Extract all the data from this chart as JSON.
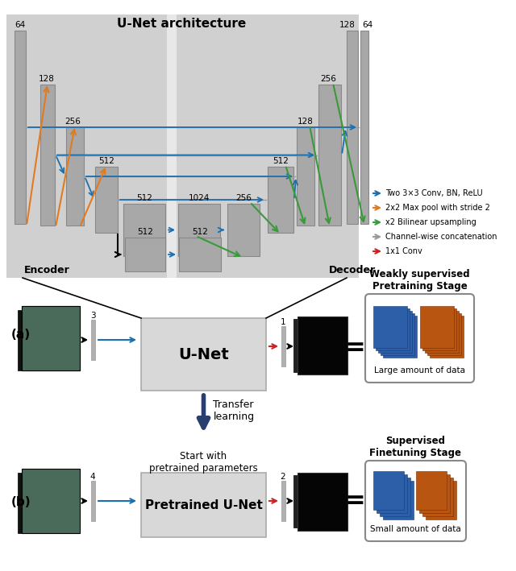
{
  "title": "U-Net architecture",
  "legend_items": [
    {
      "color": "#1a6faf",
      "label": "Two 3×3 Conv, BN, ReLU"
    },
    {
      "color": "#e07b20",
      "label": "2x2 Max pool with stride 2"
    },
    {
      "color": "#3a9a3a",
      "label": "x2 Bilinear upsampling"
    },
    {
      "color": "#999999",
      "label": "Channel-wise concatenation"
    },
    {
      "color": "#cc2222",
      "label": "1x1 Conv"
    }
  ],
  "encoder_label": "Encoder",
  "decoder_label": "Decoder",
  "panel_a_label": "(a)",
  "panel_b_label": "(b)",
  "unet_label": "U-Net",
  "pretrained_unet_label": "Pretrained U-Net",
  "transfer_label": "Transfer\nlearning",
  "start_label": "Start with\npretrained parameters",
  "weakly_title": "Weakly supervised\nPretraining Stage",
  "weakly_data_label": "Large amount of data",
  "supervised_title": "Supervised\nFinetuning Stage",
  "supervised_data_label": "Small amount of data",
  "bg_gray": "#d0d0d0",
  "block_gray": "#a8a8a8",
  "block_edge": "#888888",
  "white_div": "#e8e8e8",
  "unet_box_color": "#d8d8d8",
  "blue": "#1a6faf",
  "orange": "#e07b20",
  "green": "#3a9a3a",
  "red": "#cc2222",
  "black": "#000000",
  "dark_blue_arrow": "#2b3f6e"
}
